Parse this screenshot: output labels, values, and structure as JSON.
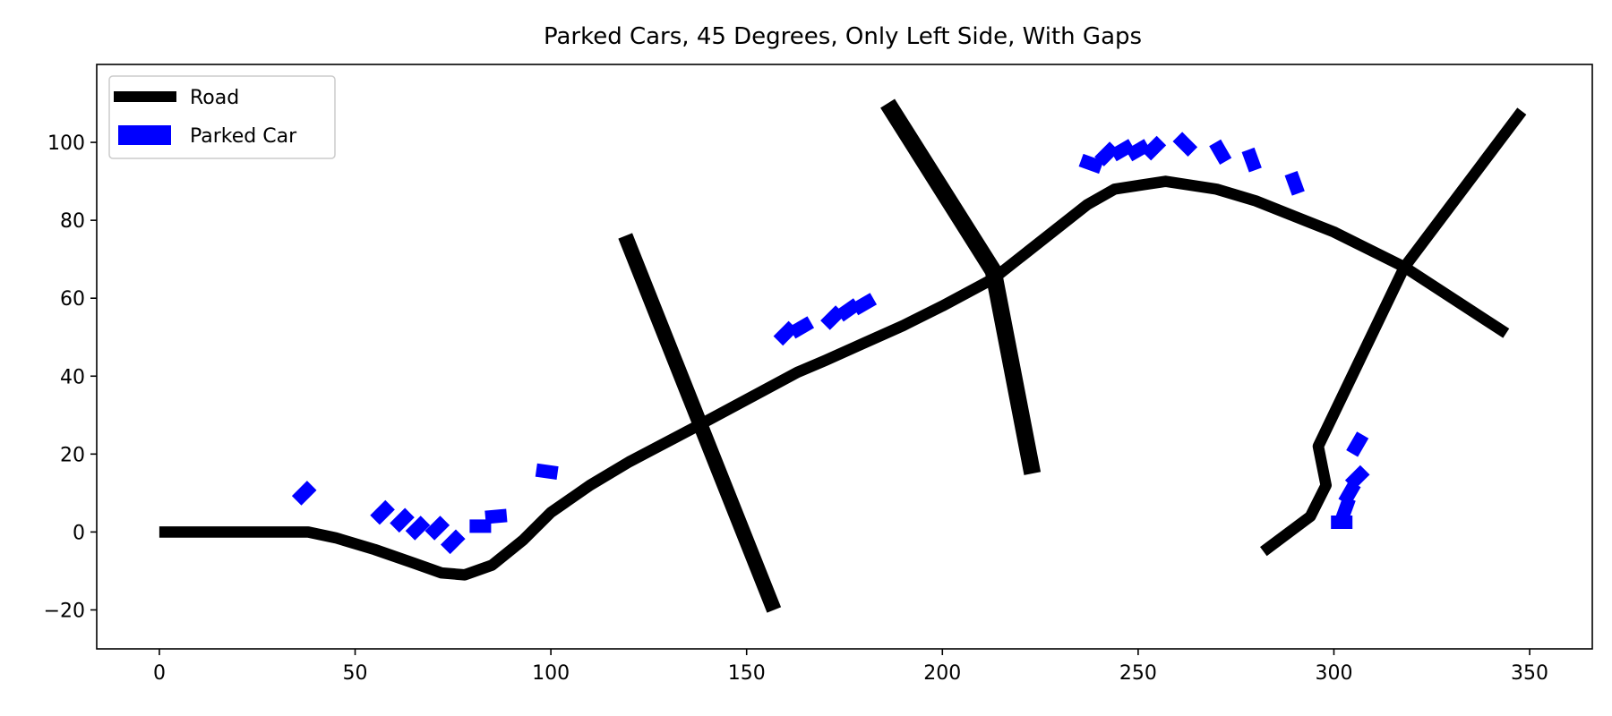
{
  "chart_data": {
    "type": "scatter",
    "title": "Parked Cars, 45 Degrees, Only Left Side, With Gaps",
    "xlabel": "",
    "ylabel": "",
    "xlim": [
      -16,
      366
    ],
    "ylim": [
      -30,
      120
    ],
    "xticks": [
      0,
      50,
      100,
      150,
      200,
      250,
      300,
      350
    ],
    "yticks": [
      -20,
      0,
      20,
      40,
      60,
      80,
      100
    ],
    "grid": false,
    "legend_position": "top-left",
    "legend": [
      {
        "label": "Road",
        "kind": "line",
        "color": "#000000"
      },
      {
        "label": "Parked Car",
        "kind": "patch",
        "color": "#0000ff"
      }
    ],
    "roads": [
      {
        "width": 6,
        "points": [
          [
            0,
            0
          ],
          [
            38,
            0
          ],
          [
            45,
            -1.5
          ],
          [
            55,
            -4.5
          ],
          [
            65,
            -8
          ],
          [
            72,
            -10.5
          ],
          [
            78,
            -11
          ],
          [
            85,
            -8.5
          ],
          [
            93,
            -2
          ],
          [
            100,
            5
          ],
          [
            110,
            12
          ],
          [
            120,
            18
          ],
          [
            137,
            27
          ],
          [
            150,
            34
          ],
          [
            163,
            41
          ],
          [
            170,
            44
          ],
          [
            180,
            48.5
          ],
          [
            190,
            53
          ],
          [
            200,
            58
          ],
          [
            213,
            65
          ],
          [
            237,
            84
          ],
          [
            244,
            88
          ],
          [
            257,
            90
          ],
          [
            270,
            88
          ],
          [
            280,
            85
          ],
          [
            290,
            81
          ],
          [
            300,
            77
          ],
          [
            318,
            68
          ],
          [
            344,
            51
          ]
        ]
      },
      {
        "width": 8,
        "points": [
          [
            119,
            76
          ],
          [
            157,
            -20
          ]
        ]
      },
      {
        "width": 9,
        "points": [
          [
            186,
            110
          ],
          [
            213,
            67
          ],
          [
            223,
            15
          ]
        ]
      },
      {
        "width": 6,
        "points": [
          [
            348,
            108
          ],
          [
            318,
            68
          ],
          [
            296,
            22
          ],
          [
            298,
            12
          ],
          [
            294,
            4
          ],
          [
            282,
            -5
          ]
        ]
      }
    ],
    "cars": [
      {
        "x": 37,
        "y": 10,
        "angle": 45
      },
      {
        "x": 57,
        "y": 5,
        "angle": 45
      },
      {
        "x": 62,
        "y": 3,
        "angle": 45
      },
      {
        "x": 66,
        "y": 1,
        "angle": 45
      },
      {
        "x": 71,
        "y": 1,
        "angle": 45
      },
      {
        "x": 75,
        "y": -2.5,
        "angle": 45
      },
      {
        "x": 82,
        "y": 1.5,
        "angle": 0
      },
      {
        "x": 86,
        "y": 4,
        "angle": 5
      },
      {
        "x": 99,
        "y": 15.5,
        "angle": -8
      },
      {
        "x": 160,
        "y": 51,
        "angle": 45
      },
      {
        "x": 164,
        "y": 52.5,
        "angle": 30
      },
      {
        "x": 172,
        "y": 55,
        "angle": 45
      },
      {
        "x": 176,
        "y": 57,
        "angle": 35
      },
      {
        "x": 180,
        "y": 58.5,
        "angle": 30
      },
      {
        "x": 238,
        "y": 94.5,
        "angle": -20
      },
      {
        "x": 242,
        "y": 97,
        "angle": 45
      },
      {
        "x": 246,
        "y": 98,
        "angle": 30
      },
      {
        "x": 250,
        "y": 98,
        "angle": 30
      },
      {
        "x": 254,
        "y": 98.5,
        "angle": 45
      },
      {
        "x": 262,
        "y": 99.5,
        "angle": -45
      },
      {
        "x": 271,
        "y": 97.5,
        "angle": -60
      },
      {
        "x": 279,
        "y": 95.5,
        "angle": -70
      },
      {
        "x": 290,
        "y": 89.5,
        "angle": -70
      },
      {
        "x": 306,
        "y": 22.5,
        "angle": 60
      },
      {
        "x": 306,
        "y": 14,
        "angle": 45
      },
      {
        "x": 304,
        "y": 10,
        "angle": 60
      },
      {
        "x": 303,
        "y": 6,
        "angle": 70
      },
      {
        "x": 302,
        "y": 2.5,
        "angle": 0
      }
    ]
  }
}
